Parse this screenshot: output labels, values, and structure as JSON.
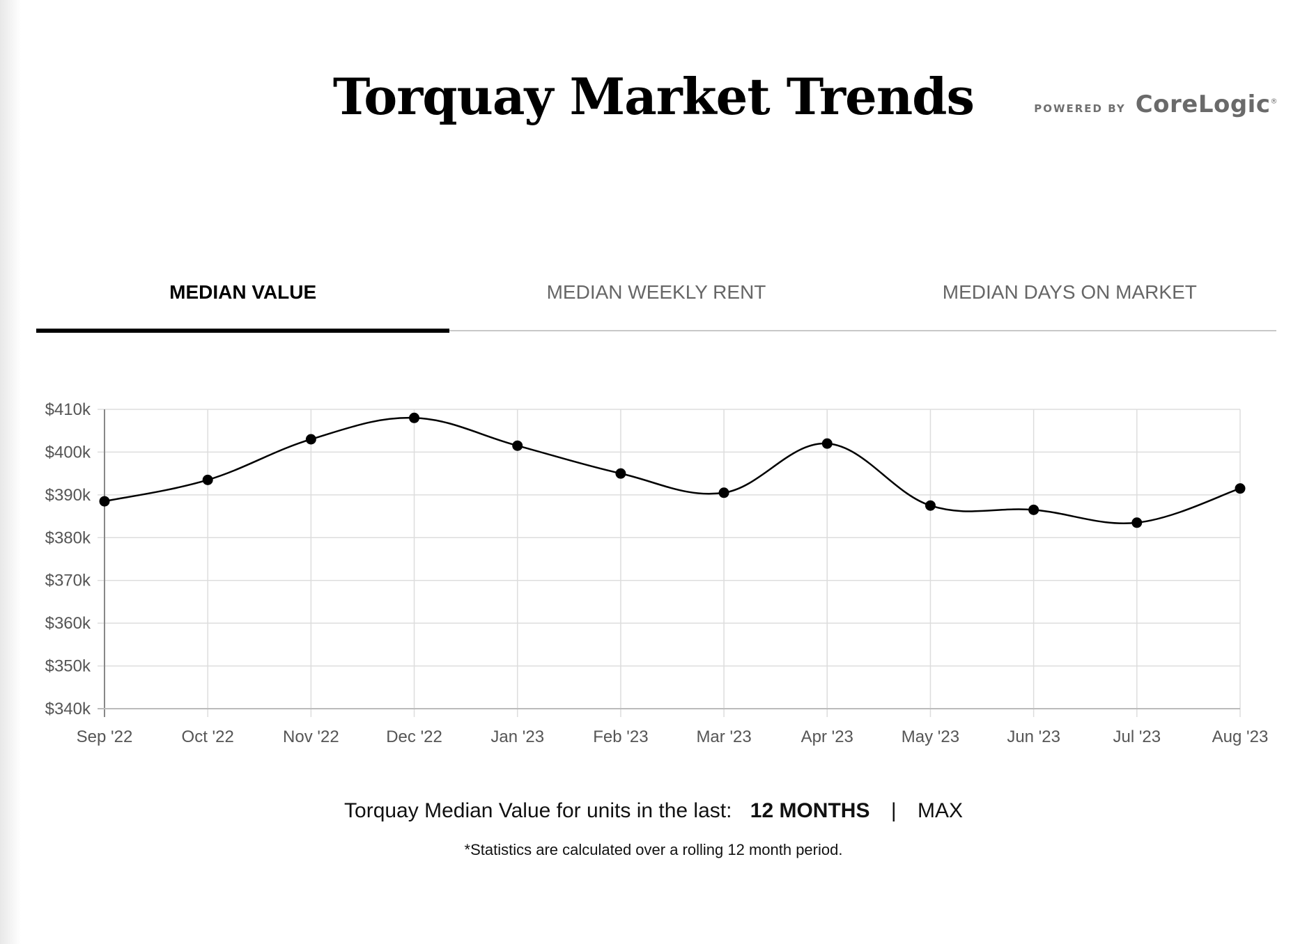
{
  "header": {
    "title": "Torquay Market Trends",
    "powered_by": "POWERED BY",
    "logo_text": "CoreLogic"
  },
  "tabs": [
    {
      "label": "MEDIAN VALUE",
      "active": true
    },
    {
      "label": "MEDIAN WEEKLY RENT",
      "active": false
    },
    {
      "label": "MEDIAN DAYS ON MARKET",
      "active": false
    }
  ],
  "controls": {
    "prefix": "Torquay Median Value for units in the last:",
    "options": [
      "12 MONTHS",
      "MAX"
    ],
    "separator": "|",
    "selected": "12 MONTHS"
  },
  "footnote": "*Statistics are calculated over a rolling 12 month period.",
  "colors": {
    "line": "#000000",
    "grid": "#dddddd",
    "tick_text": "#555555",
    "active_tab": "#000000",
    "inactive_tab": "#666666"
  },
  "chart_data": {
    "type": "line",
    "categories": [
      "Sep '22",
      "Oct '22",
      "Nov '22",
      "Dec '22",
      "Jan '23",
      "Feb '23",
      "Mar '23",
      "Apr '23",
      "May '23",
      "Jun '23",
      "Jul '23",
      "Aug '23"
    ],
    "series": [
      {
        "values": [
          388500,
          393500,
          403000,
          408000,
          401500,
          395000,
          390500,
          402000,
          387500,
          386500,
          383500,
          391500
        ]
      }
    ],
    "ylim": [
      340000,
      410000
    ],
    "yticks": [
      340000,
      350000,
      360000,
      370000,
      380000,
      390000,
      400000,
      410000
    ],
    "ytick_labels": [
      "$340k",
      "$350k",
      "$360k",
      "$370k",
      "$380k",
      "$390k",
      "$400k",
      "$410k"
    ],
    "grid": true,
    "smooth": true,
    "markers": true
  }
}
